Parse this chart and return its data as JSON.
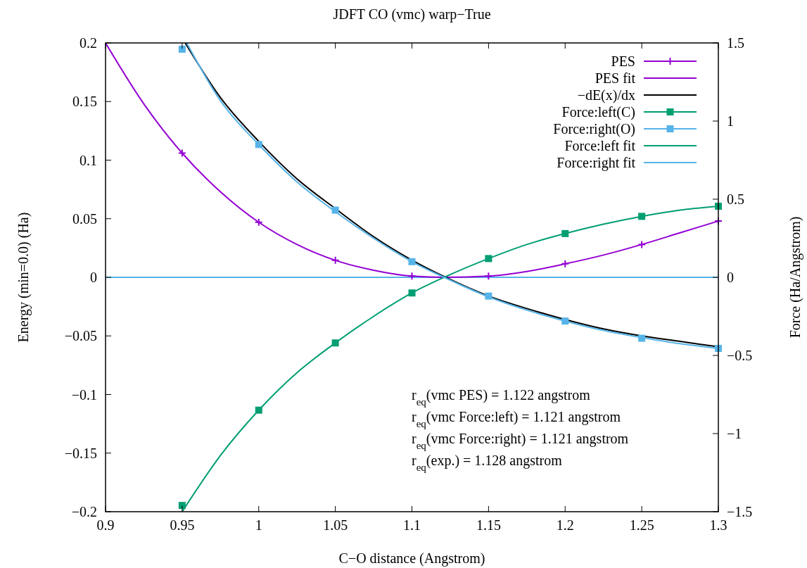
{
  "chart_data": {
    "type": "line",
    "title": "JDFT CO (vmc) warp−True",
    "xlabel": "C−O distance (Angstrom)",
    "ylabel": "Energy (min=0.0) (Ha)",
    "y2label": "Force (Ha/Angstrom)",
    "xlim": [
      0.9,
      1.3
    ],
    "xticks": [
      0.9,
      0.95,
      1,
      1.05,
      1.1,
      1.15,
      1.2,
      1.25,
      1.3
    ],
    "ylim": [
      -0.2,
      0.2
    ],
    "yticks": [
      -0.2,
      -0.15,
      -0.1,
      -0.05,
      0,
      0.05,
      0.1,
      0.15,
      0.2
    ],
    "y2lim": [
      -1.5,
      1.5
    ],
    "y2ticks": [
      -1.5,
      -1,
      -0.5,
      0,
      0.5,
      1,
      1.5
    ],
    "grid": false,
    "legend": "top right",
    "series": [
      {
        "name": "PES",
        "type": "scatter",
        "marker": "cross",
        "color": "#9400d3",
        "x": [
          0.95,
          1.0,
          1.05,
          1.1,
          1.15,
          1.2,
          1.25,
          1.3
        ],
        "values": [
          0.106,
          0.047,
          0.0145,
          0.001,
          0.001,
          0.0115,
          0.028,
          0.048
        ]
      },
      {
        "name": "PES fit",
        "color": "#9400d3",
        "x": [
          0.9,
          0.925,
          0.95,
          0.975,
          1.0,
          1.025,
          1.05,
          1.075,
          1.1,
          1.122,
          1.15,
          1.175,
          1.2,
          1.225,
          1.25,
          1.275,
          1.3
        ],
        "values": [
          0.2,
          0.148,
          0.106,
          0.073,
          0.047,
          0.028,
          0.0145,
          0.006,
          0.001,
          0,
          0.001,
          0.005,
          0.0115,
          0.019,
          0.028,
          0.038,
          0.048
        ]
      },
      {
        "name": "−dE(x)/dx",
        "axis": "y2",
        "color": "#000000",
        "x": [
          0.952,
          0.975,
          1.0,
          1.025,
          1.05,
          1.075,
          1.1,
          1.122,
          1.15,
          1.175,
          1.2,
          1.225,
          1.25,
          1.275,
          1.3
        ],
        "values": [
          1.5,
          1.15,
          0.87,
          0.63,
          0.44,
          0.26,
          0.11,
          0,
          -0.12,
          -0.2,
          -0.27,
          -0.33,
          -0.375,
          -0.41,
          -0.445
        ]
      },
      {
        "name": "Force:left(C)",
        "type": "scatter",
        "axis": "y2",
        "marker": "square",
        "color": "#009e73",
        "x": [
          0.95,
          1.0,
          1.05,
          1.1,
          1.15,
          1.2,
          1.25,
          1.3
        ],
        "values": [
          -1.46,
          -0.85,
          -0.42,
          -0.1,
          0.12,
          0.28,
          0.39,
          0.455
        ]
      },
      {
        "name": "Force:right(O)",
        "type": "scatter",
        "axis": "y2",
        "marker": "square",
        "color": "#56b4e9",
        "x": [
          0.95,
          1.0,
          1.05,
          1.1,
          1.15,
          1.2,
          1.25,
          1.3
        ],
        "values": [
          1.46,
          0.85,
          0.43,
          0.1,
          -0.12,
          -0.28,
          -0.39,
          -0.455
        ]
      },
      {
        "name": "Force:left fit",
        "axis": "y2",
        "color": "#009e73",
        "x": [
          0.95,
          0.975,
          1.0,
          1.025,
          1.05,
          1.075,
          1.1,
          1.121,
          1.15,
          1.175,
          1.2,
          1.225,
          1.25,
          1.275,
          1.3
        ],
        "values": [
          -1.5,
          -1.14,
          -0.85,
          -0.61,
          -0.42,
          -0.25,
          -0.1,
          0,
          0.12,
          0.21,
          0.28,
          0.34,
          0.39,
          0.43,
          0.455
        ]
      },
      {
        "name": "Force:right fit",
        "axis": "y2",
        "color": "#56b4e9",
        "x": [
          0.953,
          0.975,
          1.0,
          1.025,
          1.05,
          1.075,
          1.1,
          1.121,
          1.15,
          1.175,
          1.2,
          1.225,
          1.25,
          1.275,
          1.3
        ],
        "values": [
          1.5,
          1.13,
          0.85,
          0.61,
          0.42,
          0.25,
          0.1,
          0,
          -0.125,
          -0.21,
          -0.28,
          -0.34,
          -0.385,
          -0.425,
          -0.455
        ]
      }
    ],
    "ref_lines": [
      {
        "axis": "y",
        "value": 0,
        "color": "#56b4e9"
      }
    ],
    "annotations": [
      "r$_{eq}$(vmc PES) = 1.122 angstrom",
      "r$_{eq}$(vmc Force:left) = 1.121 angstrom",
      "r$_{eq}$(vmc Force:right) = 1.121 angstrom",
      "r$_{eq}$(exp.) = 1.128 angstrom"
    ]
  }
}
